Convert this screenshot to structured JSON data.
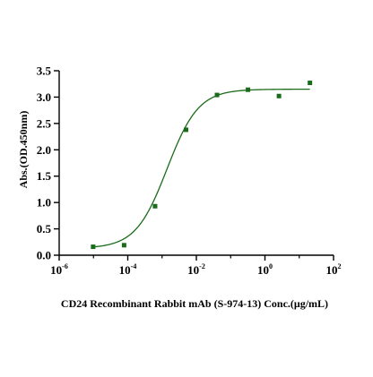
{
  "colors": {
    "series": "#1a6b1a",
    "axis": "#000000",
    "background": "#ffffff"
  },
  "chart_data": {
    "type": "scatter",
    "title": "",
    "xlabel": "CD24 Recombinant Rabbit mAb (S-974-13) Conc.(μg/mL)",
    "ylabel": "Abs.(OD.450nm)",
    "x_scale": "log10",
    "xlim": [
      1e-06,
      100
    ],
    "ylim": [
      0,
      3.5
    ],
    "grid": false,
    "legend": "none",
    "x_ticks": [
      {
        "base": "10",
        "exp": "-6",
        "value": 1e-06
      },
      {
        "base": "10",
        "exp": "-4",
        "value": 0.0001
      },
      {
        "base": "10",
        "exp": "-2",
        "value": 0.01
      },
      {
        "base": "10",
        "exp": "0",
        "value": 1
      },
      {
        "base": "10",
        "exp": "2",
        "value": 100
      }
    ],
    "y_ticks": [
      {
        "label": "0.0",
        "value": 0
      },
      {
        "label": "0.5",
        "value": 0.5
      },
      {
        "label": "1.0",
        "value": 1.0
      },
      {
        "label": "1.5",
        "value": 1.5
      },
      {
        "label": "2.0",
        "value": 2.0
      },
      {
        "label": "2.5",
        "value": 2.5
      },
      {
        "label": "3.0",
        "value": 3.0
      },
      {
        "label": "3.5",
        "value": 3.5
      }
    ],
    "series": [
      {
        "marker": "square",
        "points": [
          {
            "x": 9.77e-06,
            "y": 0.16
          },
          {
            "x": 7.81e-05,
            "y": 0.19
          },
          {
            "x": 0.000625,
            "y": 0.93
          },
          {
            "x": 0.005,
            "y": 2.38
          },
          {
            "x": 0.04,
            "y": 3.04
          },
          {
            "x": 0.32,
            "y": 3.14
          },
          {
            "x": 2.56,
            "y": 3.02
          },
          {
            "x": 20.48,
            "y": 3.27
          }
        ],
        "fit": {
          "type": "4PL",
          "bottom": 0.13,
          "top": 3.15,
          "ec50": 0.0014,
          "hill": 0.95
        }
      }
    ]
  }
}
